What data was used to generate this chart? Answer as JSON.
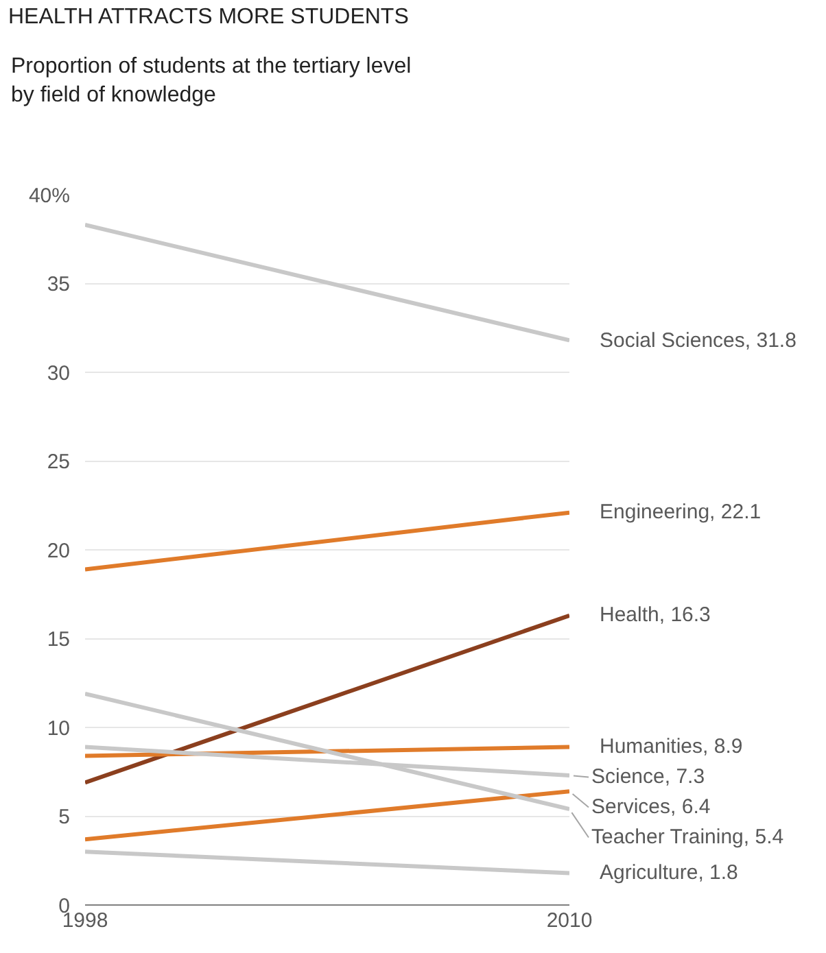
{
  "chart_data": {
    "type": "line",
    "title": "HEALTH ATTRACTS MORE STUDENTS",
    "subtitle": "Proportion of students at the tertiary level\nby field of knowledge",
    "x": [
      1998,
      2010
    ],
    "xlim": [
      1998,
      2010
    ],
    "xticks": [
      1998,
      2010
    ],
    "ylim": [
      0,
      40
    ],
    "yticks": [
      0,
      5,
      10,
      15,
      20,
      25,
      30,
      35,
      {
        "value": 40,
        "label": "40%"
      }
    ],
    "grid": "y",
    "legend": false,
    "marker": "none",
    "line_style": "solid",
    "series": [
      {
        "color": "#c8c8c8",
        "values": [
          38.3,
          31.8
        ],
        "value_labels": [
          null,
          "Social Sciences, 31.8"
        ]
      },
      {
        "color": "#e07b2a",
        "values": [
          18.9,
          22.1
        ],
        "value_labels": [
          null,
          "Engineering, 22.1"
        ]
      },
      {
        "color": "#8b3f1e",
        "values": [
          6.9,
          16.3
        ],
        "value_labels": [
          null,
          "Health, 16.3"
        ]
      },
      {
        "color": "#e07b2a",
        "values": [
          8.4,
          8.9
        ],
        "value_labels": [
          null,
          "Humanities, 8.9"
        ]
      },
      {
        "color": "#c8c8c8",
        "values": [
          8.9,
          7.3
        ],
        "value_labels": [
          null,
          "Science, 7.3"
        ]
      },
      {
        "color": "#e07b2a",
        "values": [
          3.7,
          6.4
        ],
        "value_labels": [
          null,
          "Services, 6.4"
        ]
      },
      {
        "color": "#c8c8c8",
        "values": [
          11.9,
          5.4
        ],
        "value_labels": [
          null,
          "Teacher Training, 5.4"
        ]
      },
      {
        "color": "#c8c8c8",
        "values": [
          3.0,
          1.8
        ],
        "value_labels": [
          null,
          "Agriculture, 1.8"
        ]
      }
    ]
  }
}
